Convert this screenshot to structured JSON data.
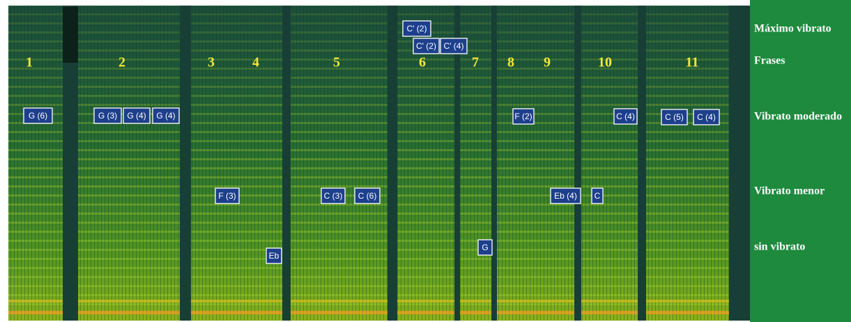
{
  "phrases": [
    "1",
    "2",
    "3",
    "4",
    "5",
    "6",
    "7",
    "8",
    "9",
    "10",
    "11"
  ],
  "notes": [
    "C' (2)",
    "C' (2)",
    "C' (4)",
    "G (6)",
    "G (3)",
    "G (4)",
    "G (4)",
    "F (2)",
    "C (4)",
    "C (5)",
    "C (4)",
    "F (3)",
    "C (3)",
    "C (6)",
    "Eb (4)",
    "C",
    "Eb",
    "G"
  ],
  "legend": [
    "Máximo vibrato",
    "Frases",
    "Vibrato moderado",
    "Vibrato menor",
    "sin vibrato"
  ]
}
